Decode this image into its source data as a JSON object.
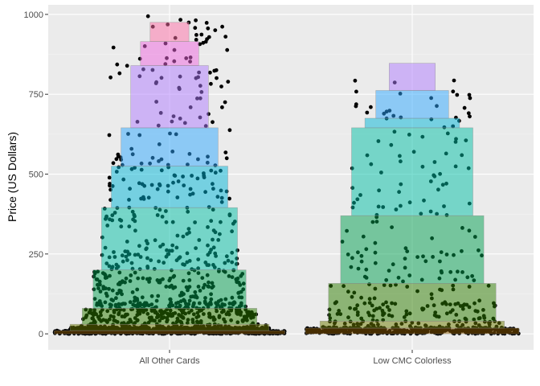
{
  "chart_data": {
    "type": "scatter",
    "title": "",
    "xlabel": "",
    "ylabel": "Price (US Dollars)",
    "ylim": [
      -50,
      1030
    ],
    "yticks": [
      0,
      250,
      500,
      750,
      1000
    ],
    "grid": true,
    "legend": "none",
    "categories": [
      "All Other Cards",
      "Low CMC Colorless"
    ],
    "overlay": {
      "type": "stacked-band-ranges",
      "colors": [
        "#8B5A00",
        "#6E7C00",
        "#2E7D00",
        "#00A050",
        "#00BFA5",
        "#00B5D8",
        "#2EA8FF",
        "#B07CFF",
        "#F066E0",
        "#FF6FA8"
      ],
      "bands": [
        [
          {
            "low": 0,
            "high": 10,
            "width": 0.95
          },
          {
            "low": 10,
            "high": 30,
            "width": 0.82
          },
          {
            "low": 30,
            "high": 80,
            "width": 0.72
          },
          {
            "low": 80,
            "high": 200,
            "width": 0.63
          },
          {
            "low": 200,
            "high": 395,
            "width": 0.56
          },
          {
            "low": 395,
            "high": 525,
            "width": 0.48
          },
          {
            "low": 525,
            "high": 645,
            "width": 0.4
          },
          {
            "low": 645,
            "high": 840,
            "width": 0.32
          },
          {
            "low": 840,
            "high": 915,
            "width": 0.24
          },
          {
            "low": 915,
            "high": 975,
            "width": 0.16
          }
        ],
        [
          {
            "low": 0,
            "high": 18,
            "width": 0.88
          },
          {
            "low": 18,
            "high": 40,
            "width": 0.76
          },
          {
            "low": 40,
            "high": 158,
            "width": 0.69
          },
          {
            "low": 158,
            "high": 370,
            "width": 0.59
          },
          {
            "low": 370,
            "high": 645,
            "width": 0.5
          },
          {
            "low": 645,
            "high": 675,
            "width": 0.39
          },
          {
            "low": 675,
            "high": 762,
            "width": 0.3
          },
          {
            "low": 762,
            "high": 847,
            "width": 0.19
          }
        ]
      ]
    }
  }
}
